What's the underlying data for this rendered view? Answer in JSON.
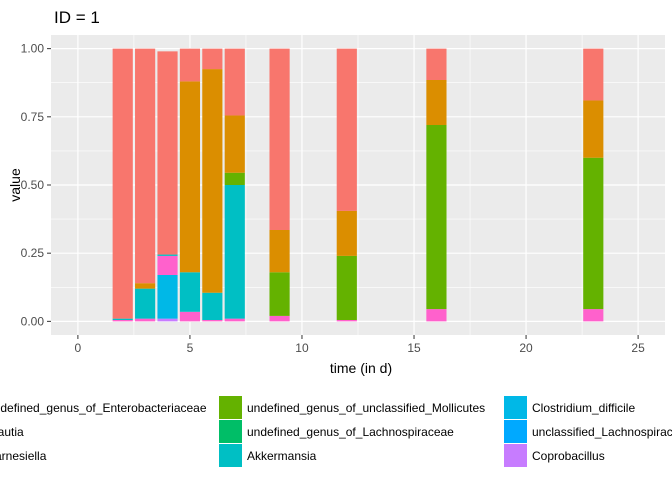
{
  "chart_data": {
    "type": "bar",
    "stacked": true,
    "title": "ID = 1",
    "xlabel": "time (in d)",
    "ylabel": "value",
    "xlim": [
      -1.2,
      26.2
    ],
    "ylim": [
      -0.05,
      1.05
    ],
    "x_ticks": [
      0,
      5,
      10,
      15,
      20,
      25
    ],
    "y_ticks": [
      0,
      0.25,
      0.5,
      0.75,
      1
    ],
    "y_tick_labels": [
      "0.00",
      "0.25",
      "0.50",
      "0.75",
      "1.00"
    ],
    "background": "#ebebeb",
    "grid": true,
    "legend_position": "bottom",
    "x": [
      2,
      3,
      4,
      5,
      6,
      7,
      9,
      12,
      16,
      23
    ],
    "series": [
      {
        "name": "unclassified_Lachnospiraceae",
        "color": "#00A9FF",
        "values": [
          0,
          0,
          0,
          0,
          0,
          0,
          0,
          0,
          0,
          0
        ]
      },
      {
        "name": "Coprobacillus",
        "color": "#C77CFF",
        "values": [
          0,
          0,
          0.01,
          0,
          0,
          0,
          0,
          0,
          0,
          0
        ]
      },
      {
        "name": "Clostridium_difficile",
        "color": "#00B8E7",
        "values": [
          0,
          0,
          0.16,
          0,
          0,
          0,
          0,
          0,
          0,
          0
        ]
      },
      {
        "name": "Barnesiella",
        "color": "#FF61CC",
        "values": [
          0.005,
          0.01,
          0.07,
          0.035,
          0.005,
          0.01,
          0.02,
          0.005,
          0.045,
          0.045
        ]
      },
      {
        "name": "Akkermansia",
        "color": "#00BFC4",
        "values": [
          0.005,
          0.11,
          0.005,
          0.145,
          0.1,
          0.49,
          0,
          0,
          0,
          0
        ]
      },
      {
        "name": "undefined_genus_of_Lachnospiraceae",
        "color": "#00BE67",
        "values": [
          0,
          0,
          0,
          0,
          0,
          0,
          0,
          0,
          0,
          0
        ]
      },
      {
        "name": "undefined_genus_of_unclassified_Mollicutes",
        "color": "#64B200",
        "values": [
          0,
          0,
          0,
          0,
          0,
          0.045,
          0.16,
          0.235,
          0.675,
          0.555
        ]
      },
      {
        "name": "Blautia",
        "color": "#DB8E00",
        "values": [
          0,
          0.02,
          0,
          0.7,
          0.82,
          0.21,
          0.155,
          0.165,
          0.165,
          0.21
        ]
      },
      {
        "name": "undefined_genus_of_Enterobacteriaceae",
        "color": "#F8766D",
        "values": [
          0.99,
          0.86,
          0.745,
          0.12,
          0.075,
          0.245,
          0.665,
          0.595,
          0.115,
          0.19
        ]
      }
    ],
    "legend": {
      "columns": [
        [
          {
            "label": "undefined_genus_of_Enterobacteriaceae",
            "color": "#F8766D"
          },
          {
            "label": "Blautia",
            "color": "#DB8E00"
          },
          {
            "label": "Barnesiella",
            "color": "#FF61CC"
          }
        ],
        [
          {
            "label": "undefined_genus_of_unclassified_Mollicutes",
            "color": "#64B200"
          },
          {
            "label": "undefined_genus_of_Lachnospiraceae",
            "color": "#00BE67"
          },
          {
            "label": "Akkermansia",
            "color": "#00BFC4"
          }
        ],
        [
          {
            "label": "Clostridium_difficile",
            "color": "#00B8E7"
          },
          {
            "label": "unclassified_Lachnospiraceae",
            "color": "#00A9FF"
          },
          {
            "label": "Coprobacillus",
            "color": "#C77CFF"
          }
        ]
      ]
    }
  }
}
